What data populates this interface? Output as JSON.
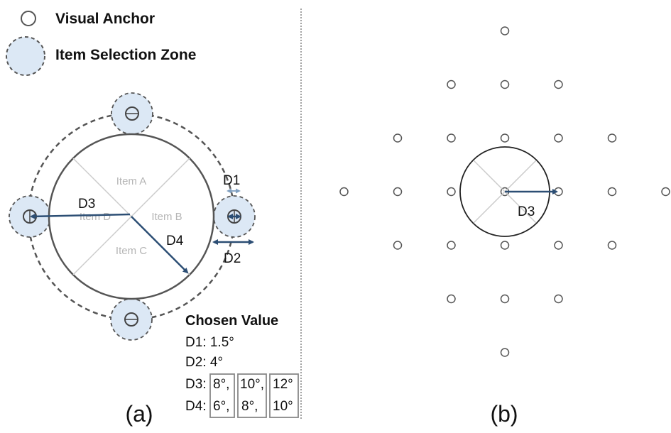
{
  "legend": {
    "anchor_label": "Visual Anchor",
    "zone_label": "Item Selection Zone"
  },
  "panel_a": {
    "items": [
      "Item A",
      "Item B",
      "Item C",
      "Item D"
    ],
    "dimensions": {
      "d1": "D1",
      "d2": "D2",
      "d3": "D3",
      "d4": "D4"
    },
    "caption": "(a)"
  },
  "chosen_values": {
    "title": "Chosen Value",
    "d1": "D1: 1.5°",
    "d2": "D2: 4°",
    "d3_prefix": "D3:",
    "d3_values": [
      "8°,",
      "10°,",
      "12°"
    ],
    "d4_prefix": "D4:",
    "d4_values": [
      "6°,",
      "8°,",
      "10°"
    ]
  },
  "panel_b": {
    "dimension": "D3",
    "caption": "(b)"
  },
  "colors": {
    "arrow": "#2c4e74",
    "zone_fill": "#dce8f5",
    "line": "#555555",
    "divider_line": "#cccccc"
  }
}
